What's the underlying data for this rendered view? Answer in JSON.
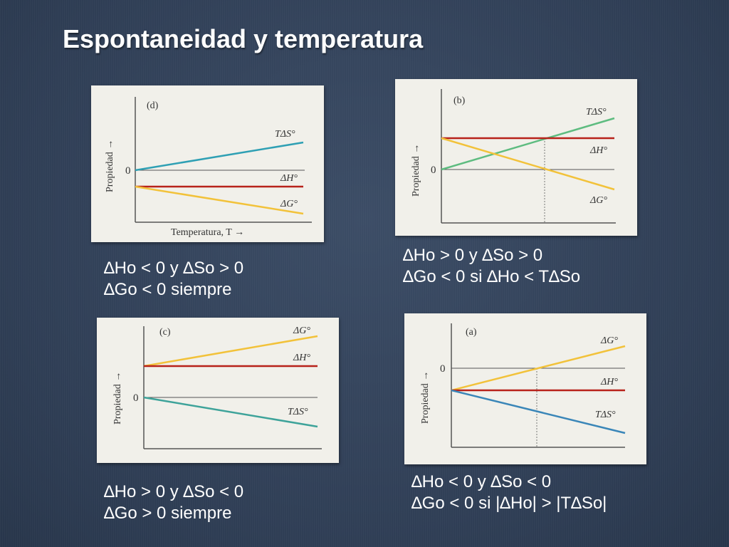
{
  "title": "Espontaneidad y temperatura",
  "colors": {
    "background": "#34445c",
    "panel": "#f1f0ea",
    "axis": "#555555",
    "dH": "#b8221a",
    "dG": "#f2c23a",
    "TdS": "#2fa0b4",
    "TdS_green": "#6cc070"
  },
  "chart_data": [
    {
      "id": "d",
      "type": "line",
      "panel_label": "(d)",
      "ylabel": "Propiedad →",
      "xlabel": "Temperatura, T →",
      "zero_label": "0",
      "x": [
        0,
        1
      ],
      "ylim": [
        -1,
        1
      ],
      "series": [
        {
          "name": "TΔS°",
          "values": [
            0,
            0.45
          ]
        },
        {
          "name": "ΔH°",
          "values": [
            -0.3,
            -0.3
          ]
        },
        {
          "name": "ΔG°",
          "values": [
            -0.3,
            -0.78
          ]
        }
      ],
      "caption": [
        "∆Ho < 0 y ∆So > 0",
        "∆Go < 0 siempre"
      ]
    },
    {
      "id": "b",
      "type": "line",
      "panel_label": "(b)",
      "ylabel": "Propiedad →",
      "xlabel": "",
      "zero_label": "0",
      "x": [
        0,
        1
      ],
      "ylim": [
        -1,
        1
      ],
      "series": [
        {
          "name": "TΔS°",
          "values": [
            0,
            0.8
          ]
        },
        {
          "name": "ΔH°",
          "values": [
            0.47,
            0.47
          ]
        },
        {
          "name": "ΔG°",
          "values": [
            0.47,
            -0.33
          ]
        }
      ],
      "caption": [
        "∆Ho > 0 y ∆So > 0",
        "∆Go < 0 si ∆Ho < T∆So"
      ]
    },
    {
      "id": "c",
      "type": "line",
      "panel_label": "(c)",
      "ylabel": "Propiedad →",
      "xlabel": "",
      "zero_label": "0",
      "x": [
        0,
        1
      ],
      "ylim": [
        -1,
        1
      ],
      "series": [
        {
          "name": "ΔG°",
          "values": [
            0.45,
            0.87
          ]
        },
        {
          "name": "ΔH°",
          "values": [
            0.45,
            0.45
          ]
        },
        {
          "name": "TΔS°",
          "values": [
            0,
            -0.42
          ]
        }
      ],
      "caption": [
        "∆Ho > 0 y ∆So < 0",
        "∆Go > 0 siempre"
      ]
    },
    {
      "id": "a",
      "type": "line",
      "panel_label": "(a)",
      "ylabel": "Propiedad →",
      "xlabel": "",
      "zero_label": "0",
      "x": [
        0,
        1
      ],
      "ylim": [
        -1,
        1
      ],
      "series": [
        {
          "name": "ΔG°",
          "values": [
            -0.32,
            0.3
          ]
        },
        {
          "name": "ΔH°",
          "values": [
            -0.32,
            -0.32
          ]
        },
        {
          "name": "TΔS°",
          "values": [
            0,
            -0.62
          ]
        }
      ],
      "caption": [
        "∆Ho < 0 y ∆So < 0",
        "∆Go < 0 si |∆Ho| > |T∆So|"
      ]
    }
  ]
}
